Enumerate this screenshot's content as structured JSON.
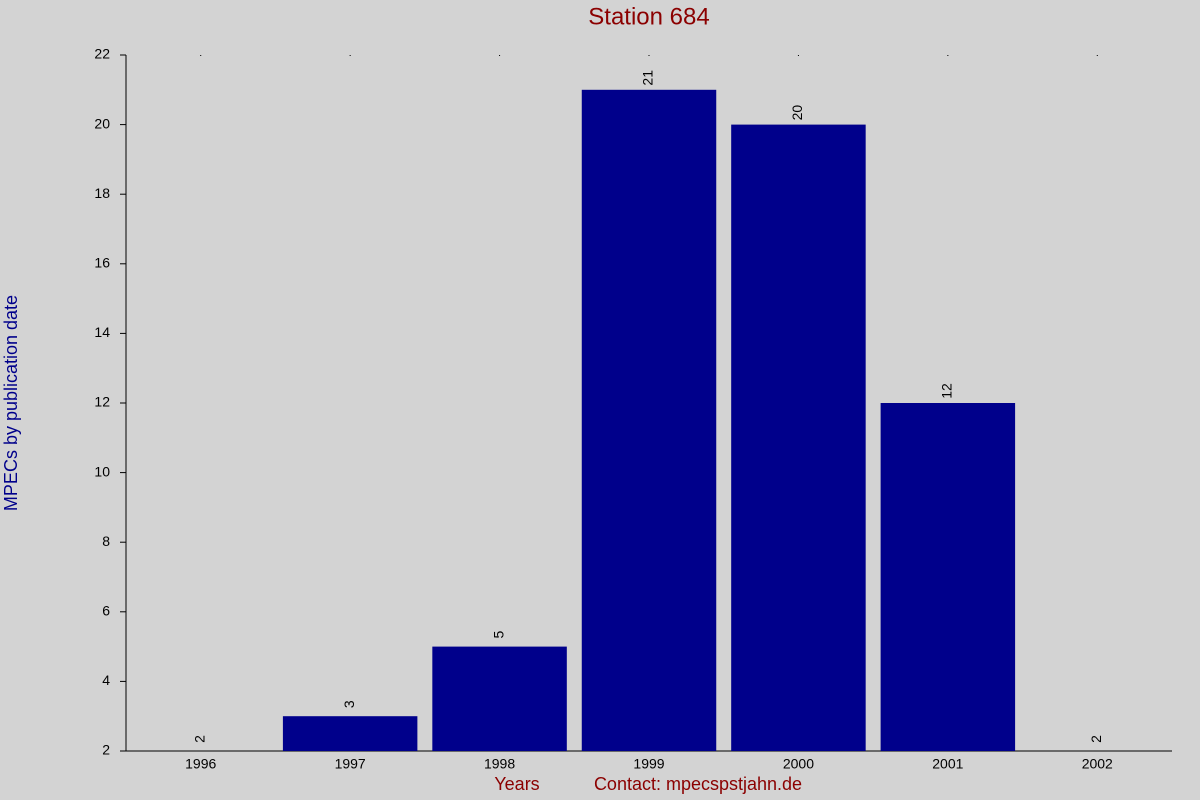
{
  "chart_data": {
    "type": "bar",
    "title": "Station 684",
    "x_label": "Years",
    "y_label": "MPECs by publication date",
    "contact": "Contact: mpecspstjahn.de",
    "categories": [
      "1996",
      "1997",
      "1998",
      "1999",
      "2000",
      "2001",
      "2002"
    ],
    "values": [
      2,
      3,
      5,
      21,
      20,
      12,
      2
    ],
    "color": "#00008b",
    "ylim": [
      2,
      22
    ],
    "yticks": [
      2,
      4,
      6,
      8,
      10,
      12,
      14,
      16,
      18,
      20,
      22
    ],
    "grid": false
  }
}
